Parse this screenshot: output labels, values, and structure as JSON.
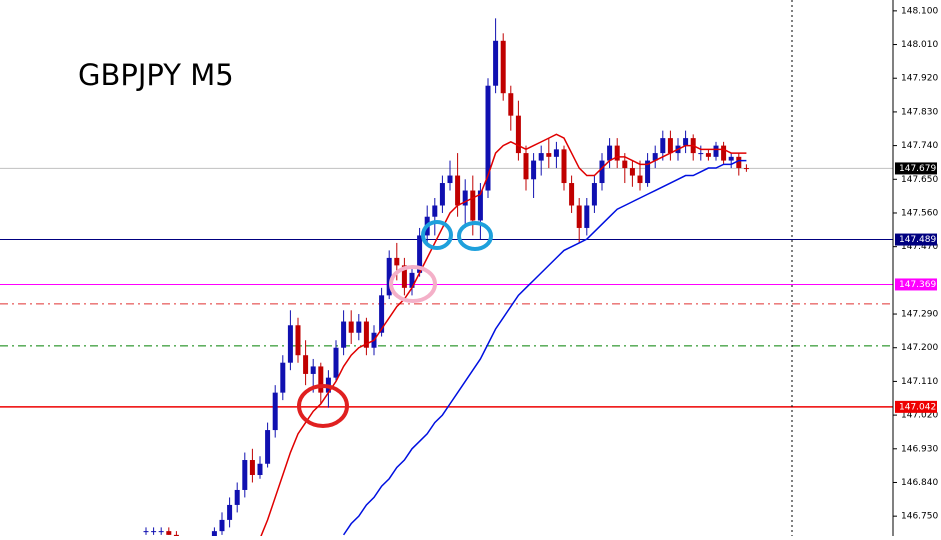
{
  "chart_data": {
    "type": "candlestick",
    "title": "GBPJPY M5",
    "ylim": [
      146.697,
      148.129
    ],
    "yticks": [
      {
        "value": 148.1,
        "label": "148.100"
      },
      {
        "value": 148.01,
        "label": "148.010"
      },
      {
        "value": 147.92,
        "label": "147.920"
      },
      {
        "value": 147.83,
        "label": "147.830"
      },
      {
        "value": 147.74,
        "label": "147.740"
      },
      {
        "value": 147.65,
        "label": "147.650"
      },
      {
        "value": 147.56,
        "label": "147.560"
      },
      {
        "value": 147.47,
        "label": "147.470"
      },
      {
        "value": 147.29,
        "label": "147.290"
      },
      {
        "value": 147.2,
        "label": "147.200"
      },
      {
        "value": 147.11,
        "label": "147.110"
      },
      {
        "value": 147.02,
        "label": "147.020"
      },
      {
        "value": 146.93,
        "label": "146.930"
      },
      {
        "value": 146.84,
        "label": "146.840"
      },
      {
        "value": 146.75,
        "label": "146.750"
      }
    ],
    "up_color": "#1010b0",
    "down_color": "#c00000",
    "candles": [
      [
        146.71,
        146.72,
        146.7,
        146.71
      ],
      [
        146.71,
        146.72,
        146.7,
        146.71
      ],
      [
        146.71,
        146.72,
        146.7,
        146.71
      ],
      [
        146.71,
        146.72,
        146.7,
        146.7
      ],
      [
        146.7,
        146.71,
        146.66,
        146.67
      ],
      [
        146.67,
        146.68,
        146.63,
        146.64
      ],
      [
        146.64,
        146.66,
        146.62,
        146.65
      ],
      [
        146.65,
        146.67,
        146.63,
        146.66
      ],
      [
        146.66,
        146.69,
        146.64,
        146.68
      ],
      [
        146.68,
        146.72,
        146.67,
        146.71
      ],
      [
        146.71,
        146.76,
        146.7,
        146.74
      ],
      [
        146.74,
        146.8,
        146.72,
        146.78
      ],
      [
        146.78,
        146.84,
        146.76,
        146.82
      ],
      [
        146.82,
        146.92,
        146.8,
        146.9
      ],
      [
        146.9,
        146.93,
        146.84,
        146.86
      ],
      [
        146.86,
        146.91,
        146.85,
        146.89
      ],
      [
        146.89,
        147.0,
        146.88,
        146.98
      ],
      [
        146.98,
        147.1,
        146.96,
        147.08
      ],
      [
        147.08,
        147.18,
        147.06,
        147.16
      ],
      [
        147.16,
        147.3,
        147.14,
        147.26
      ],
      [
        147.26,
        147.28,
        147.16,
        147.18
      ],
      [
        147.18,
        147.22,
        147.1,
        147.13
      ],
      [
        147.13,
        147.17,
        147.08,
        147.15
      ],
      [
        147.15,
        147.16,
        147.05,
        147.08
      ],
      [
        147.08,
        147.14,
        147.04,
        147.12
      ],
      [
        147.12,
        147.22,
        147.11,
        147.2
      ],
      [
        147.2,
        147.3,
        147.18,
        147.27
      ],
      [
        147.27,
        147.3,
        147.21,
        147.24
      ],
      [
        147.24,
        147.29,
        147.22,
        147.27
      ],
      [
        147.27,
        147.28,
        147.18,
        147.2
      ],
      [
        147.2,
        147.26,
        147.18,
        147.24
      ],
      [
        147.24,
        147.36,
        147.23,
        147.34
      ],
      [
        147.34,
        147.46,
        147.33,
        147.44
      ],
      [
        147.44,
        147.48,
        147.38,
        147.42
      ],
      [
        147.42,
        147.44,
        147.34,
        147.36
      ],
      [
        147.36,
        147.42,
        147.34,
        147.4
      ],
      [
        147.4,
        147.52,
        147.39,
        147.5
      ],
      [
        147.5,
        147.58,
        147.48,
        147.55
      ],
      [
        147.55,
        147.6,
        147.5,
        147.58
      ],
      [
        147.58,
        147.66,
        147.56,
        147.64
      ],
      [
        147.64,
        147.7,
        147.62,
        147.66
      ],
      [
        147.66,
        147.72,
        147.55,
        147.58
      ],
      [
        147.58,
        147.65,
        147.52,
        147.62
      ],
      [
        147.62,
        147.66,
        147.5,
        147.54
      ],
      [
        147.54,
        147.64,
        147.49,
        147.62
      ],
      [
        147.62,
        147.92,
        147.6,
        147.9
      ],
      [
        147.9,
        148.08,
        147.88,
        148.02
      ],
      [
        148.02,
        148.04,
        147.86,
        147.88
      ],
      [
        147.88,
        147.9,
        147.78,
        147.82
      ],
      [
        147.82,
        147.86,
        147.7,
        147.72
      ],
      [
        147.72,
        147.74,
        147.62,
        147.65
      ],
      [
        147.65,
        147.72,
        147.6,
        147.7
      ],
      [
        147.7,
        147.74,
        147.66,
        147.72
      ],
      [
        147.72,
        147.76,
        147.68,
        147.71
      ],
      [
        147.71,
        147.75,
        147.68,
        147.73
      ],
      [
        147.73,
        147.74,
        147.62,
        147.64
      ],
      [
        147.64,
        147.66,
        147.56,
        147.58
      ],
      [
        147.58,
        147.6,
        147.48,
        147.52
      ],
      [
        147.52,
        147.6,
        147.5,
        147.58
      ],
      [
        147.58,
        147.66,
        147.56,
        147.64
      ],
      [
        147.64,
        147.72,
        147.62,
        147.7
      ],
      [
        147.7,
        147.76,
        147.68,
        147.74
      ],
      [
        147.74,
        147.76,
        147.68,
        147.7
      ],
      [
        147.7,
        147.72,
        147.64,
        147.68
      ],
      [
        147.68,
        147.7,
        147.63,
        147.66
      ],
      [
        147.66,
        147.7,
        147.62,
        147.64
      ],
      [
        147.64,
        147.72,
        147.63,
        147.7
      ],
      [
        147.7,
        147.74,
        147.68,
        147.72
      ],
      [
        147.72,
        147.78,
        147.7,
        147.76
      ],
      [
        147.76,
        147.78,
        147.7,
        147.72
      ],
      [
        147.72,
        147.76,
        147.7,
        147.74
      ],
      [
        147.74,
        147.78,
        147.72,
        147.76
      ],
      [
        147.76,
        147.77,
        147.7,
        147.72
      ],
      [
        147.72,
        147.74,
        147.7,
        147.72
      ],
      [
        147.72,
        147.73,
        147.7,
        147.71
      ],
      [
        147.71,
        147.75,
        147.7,
        147.74
      ],
      [
        147.74,
        147.75,
        147.69,
        147.7
      ],
      [
        147.7,
        147.72,
        147.68,
        147.71
      ],
      [
        147.71,
        147.72,
        147.66,
        147.68
      ],
      [
        147.68,
        147.69,
        147.67,
        147.679
      ]
    ],
    "series": [
      {
        "color": "#e00000",
        "values": [
          null,
          null,
          null,
          null,
          null,
          null,
          null,
          null,
          null,
          null,
          null,
          null,
          null,
          null,
          null,
          146.69,
          146.74,
          146.8,
          146.86,
          146.92,
          146.97,
          147.0,
          147.03,
          147.05,
          147.08,
          147.11,
          147.15,
          147.18,
          147.2,
          147.21,
          147.22,
          147.25,
          147.28,
          147.31,
          147.33,
          147.36,
          147.4,
          147.44,
          147.48,
          147.52,
          147.56,
          147.58,
          147.59,
          147.6,
          147.61,
          147.66,
          147.72,
          147.74,
          147.75,
          147.74,
          147.73,
          147.74,
          147.75,
          147.76,
          147.77,
          147.76,
          147.72,
          147.68,
          147.66,
          147.66,
          147.68,
          147.7,
          147.71,
          147.71,
          147.7,
          147.69,
          147.69,
          147.7,
          147.71,
          147.72,
          147.73,
          147.74,
          147.74,
          147.73,
          147.73,
          147.73,
          147.73,
          147.72,
          147.72,
          147.72
        ]
      },
      {
        "color": "#0010e0",
        "values": [
          null,
          null,
          null,
          null,
          null,
          null,
          null,
          null,
          null,
          null,
          null,
          null,
          null,
          null,
          null,
          null,
          null,
          null,
          null,
          null,
          null,
          null,
          null,
          null,
          null,
          null,
          146.7,
          146.73,
          146.75,
          146.78,
          146.8,
          146.83,
          146.85,
          146.88,
          146.9,
          146.93,
          146.95,
          146.97,
          147.0,
          147.02,
          147.05,
          147.08,
          147.11,
          147.14,
          147.17,
          147.21,
          147.25,
          147.28,
          147.31,
          147.34,
          147.36,
          147.38,
          147.4,
          147.42,
          147.44,
          147.46,
          147.47,
          147.48,
          147.49,
          147.51,
          147.53,
          147.55,
          147.57,
          147.58,
          147.59,
          147.6,
          147.61,
          147.62,
          147.63,
          147.64,
          147.65,
          147.66,
          147.66,
          147.67,
          147.68,
          147.68,
          147.69,
          147.69,
          147.7,
          147.7
        ]
      }
    ],
    "current_price": 147.679,
    "hlines": [
      {
        "price": 147.489,
        "color": "#000080",
        "style": "solid",
        "labeled": true
      },
      {
        "price": 147.369,
        "color": "#ff00ff",
        "style": "solid",
        "labeled": true
      },
      {
        "price": 147.317,
        "color": "#e03030",
        "style": "dashdot",
        "labeled": false
      },
      {
        "price": 147.205,
        "color": "#008000",
        "style": "dashdot",
        "labeled": false
      },
      {
        "price": 147.042,
        "color": "#ee0000",
        "style": "solid",
        "labeled": true
      }
    ]
  }
}
